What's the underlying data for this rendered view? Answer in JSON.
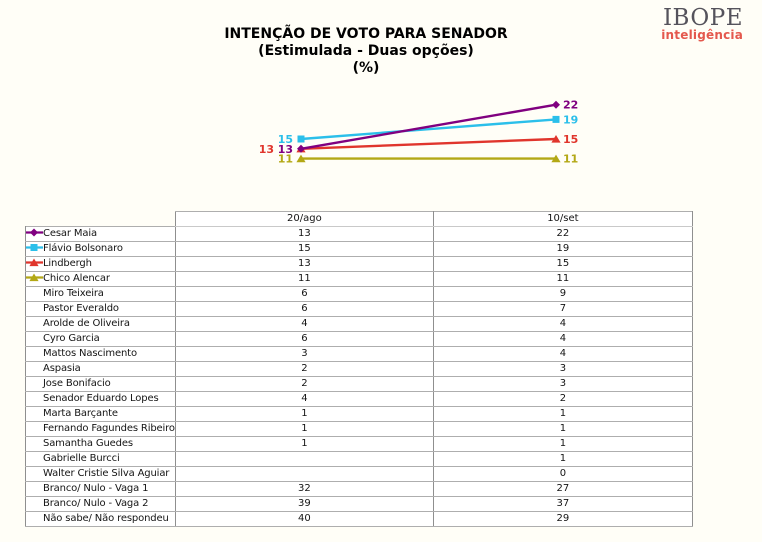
{
  "logo": {
    "name": "IBOPE",
    "tagline": "inteligência"
  },
  "title": {
    "line1": "INTENÇÃO DE VOTO PARA SENADOR",
    "line2": "(Estimulada - Duas opções)",
    "line3": "(%)"
  },
  "chart_data": {
    "type": "line",
    "title": "INTENÇÃO DE VOTO PARA SENADOR (Estimulada - Duas opções) (%)",
    "x": [
      "20/ago",
      "10/set"
    ],
    "data_labels": true,
    "gridlines": false,
    "axes_hidden": true,
    "series": [
      {
        "name": "Cesar Maia",
        "values": [
          13,
          22
        ],
        "color": "#800080",
        "marker": "diamond"
      },
      {
        "name": "Flávio Bolsonaro",
        "values": [
          15,
          19
        ],
        "color": "#2BBFEA",
        "marker": "square"
      },
      {
        "name": "Lindbergh",
        "values": [
          13,
          15
        ],
        "color": "#E0352C",
        "marker": "triangle"
      },
      {
        "name": "Chico Alencar",
        "values": [
          11,
          11
        ],
        "color": "#B3A815",
        "marker": "triangle"
      }
    ]
  },
  "table": {
    "columns": [
      "20/ago",
      "10/set"
    ],
    "rows": [
      {
        "name": "Cesar Maia",
        "values": [
          "13",
          "22"
        ],
        "series": 0
      },
      {
        "name": "Flávio Bolsonaro",
        "values": [
          "15",
          "19"
        ],
        "series": 1
      },
      {
        "name": "Lindbergh",
        "values": [
          "13",
          "15"
        ],
        "series": 2
      },
      {
        "name": "Chico Alencar",
        "values": [
          "11",
          "11"
        ],
        "series": 3
      },
      {
        "name": "Miro Teixeira",
        "values": [
          "6",
          "9"
        ],
        "series": null
      },
      {
        "name": "Pastor Everaldo",
        "values": [
          "6",
          "7"
        ],
        "series": null
      },
      {
        "name": "Arolde de Oliveira",
        "values": [
          "4",
          "4"
        ],
        "series": null
      },
      {
        "name": "Cyro Garcia",
        "values": [
          "6",
          "4"
        ],
        "series": null
      },
      {
        "name": "Mattos Nascimento",
        "values": [
          "3",
          "4"
        ],
        "series": null
      },
      {
        "name": "Aspasia",
        "values": [
          "2",
          "3"
        ],
        "series": null
      },
      {
        "name": "Jose Bonifacio",
        "values": [
          "2",
          "3"
        ],
        "series": null
      },
      {
        "name": "Senador Eduardo Lopes",
        "values": [
          "4",
          "2"
        ],
        "series": null
      },
      {
        "name": "Marta Barçante",
        "values": [
          "1",
          "1"
        ],
        "series": null
      },
      {
        "name": "Fernando Fagundes Ribeiro",
        "values": [
          "1",
          "1"
        ],
        "series": null
      },
      {
        "name": "Samantha Guedes",
        "values": [
          "1",
          "1"
        ],
        "series": null
      },
      {
        "name": "Gabrielle Burcci",
        "values": [
          "",
          "1"
        ],
        "series": null
      },
      {
        "name": "Walter Cristie Silva Aguiar",
        "values": [
          "",
          "0"
        ],
        "series": null
      },
      {
        "name": "Branco/ Nulo - Vaga 1",
        "values": [
          "32",
          "27"
        ],
        "series": null
      },
      {
        "name": "Branco/ Nulo - Vaga 2",
        "values": [
          "39",
          "37"
        ],
        "series": null
      },
      {
        "name": "Não sabe/ Não respondeu",
        "values": [
          "40",
          "29"
        ],
        "series": null
      }
    ]
  }
}
